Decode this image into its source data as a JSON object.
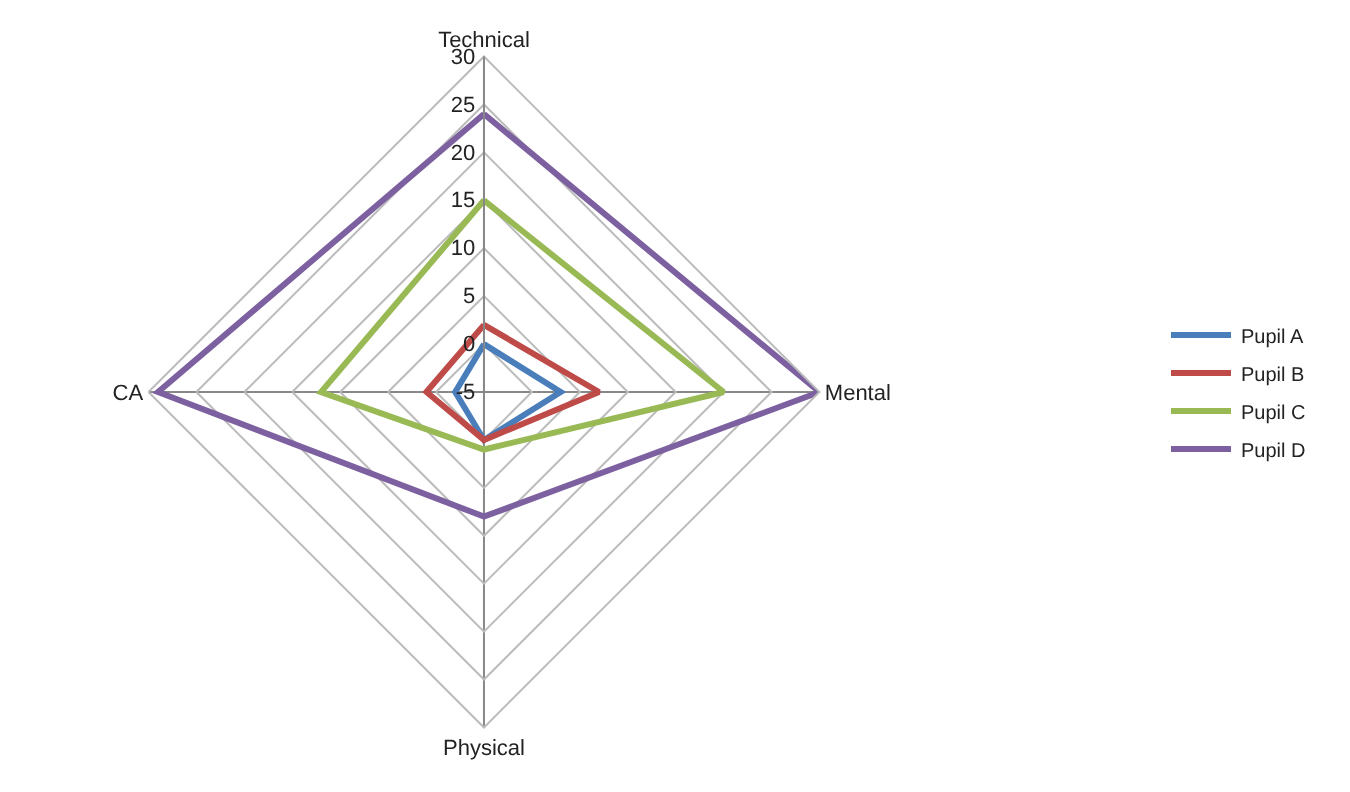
{
  "chart_data": {
    "type": "radar",
    "categories": [
      "Technical",
      "Mental",
      "Physical",
      "CA"
    ],
    "series": [
      {
        "name": "Pupil A",
        "color": "#4a7ebb",
        "values": [
          0,
          3,
          0,
          -2
        ]
      },
      {
        "name": "Pupil B",
        "color": "#be4b48",
        "values": [
          2,
          7,
          0,
          1
        ]
      },
      {
        "name": "Pupil C",
        "color": "#98b954",
        "values": [
          15,
          20,
          1,
          12
        ]
      },
      {
        "name": "Pupil D",
        "color": "#7d60a0",
        "values": [
          24,
          30,
          8,
          29
        ]
      }
    ],
    "ylim": [
      -5,
      30
    ],
    "yticks": [
      -5,
      0,
      5,
      10,
      15,
      20,
      25,
      30
    ],
    "grid": true,
    "legend": "right",
    "marker": "none",
    "line_style": "solid"
  }
}
